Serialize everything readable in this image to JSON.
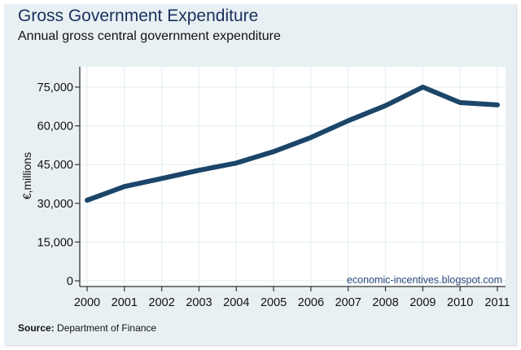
{
  "header": {
    "title": "Gross Government Expenditure",
    "subtitle": "Annual gross central government expenditure"
  },
  "footer": {
    "source_label": "Source:",
    "source_text": "Department of Finance"
  },
  "colors": {
    "line": "#1b4569",
    "panel_background": "#e9f0f3",
    "plot_background": "#ffffff",
    "gridline": "#e6eff2",
    "title": "#1a2f5c",
    "watermark": "#2b4a7a"
  },
  "chart_data": {
    "type": "line",
    "title": "Gross Government Expenditure",
    "subtitle": "Annual gross central government expenditure",
    "xlabel": "",
    "ylabel": "€,millions",
    "x": [
      2000,
      2001,
      2002,
      2003,
      2004,
      2005,
      2006,
      2007,
      2008,
      2009,
      2010,
      2011
    ],
    "series": [
      {
        "name": "Gross central government expenditure",
        "values": [
          31200,
          36500,
          39600,
          42800,
          45600,
          50000,
          55500,
          62000,
          67800,
          75000,
          69000,
          68100
        ]
      }
    ],
    "x_ticks": [
      2000,
      2001,
      2002,
      2003,
      2004,
      2005,
      2006,
      2007,
      2008,
      2009,
      2010,
      2011
    ],
    "x_tick_labels": [
      "2000",
      "2001",
      "2002",
      "2003",
      "2004",
      "2005",
      "2006",
      "2007",
      "2008",
      "2009",
      "2010",
      "2011"
    ],
    "y_ticks": [
      0,
      15000,
      30000,
      45000,
      60000,
      75000
    ],
    "y_tick_labels": [
      "0",
      "15,000",
      "30,000",
      "45,000",
      "60,000",
      "75,000"
    ],
    "ylim": [
      0,
      75000
    ],
    "xlim": [
      2000,
      2011
    ],
    "grid": true,
    "legend": "none",
    "annotations": [
      "economic-incentives.blogspot.com"
    ],
    "source": "Source: Department of Finance"
  }
}
